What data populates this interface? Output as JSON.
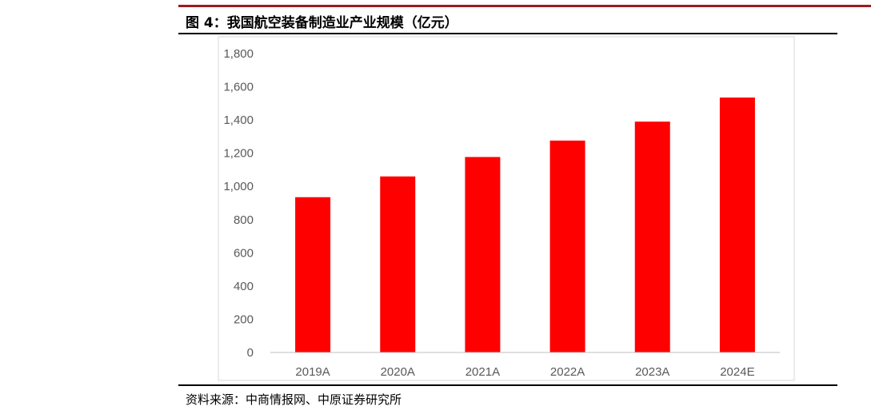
{
  "figure": {
    "title": "图 4：我国航空装备制造业产业规模（亿元）",
    "source": "资料来源：中商情报网、中原证券研究所"
  },
  "colors": {
    "bar": "#ff0000",
    "top_rule": "#9b1b1f",
    "axis_text": "#595959"
  },
  "chart_data": {
    "type": "bar",
    "title": "",
    "xlabel": "",
    "ylabel": "",
    "categories": [
      "2019A",
      "2020A",
      "2021A",
      "2022A",
      "2023A",
      "2024E"
    ],
    "values": [
      935,
      1060,
      1177,
      1276,
      1390,
      1535
    ],
    "ylim": [
      0,
      1800
    ],
    "yticks": [
      0,
      200,
      400,
      600,
      800,
      1000,
      1200,
      1400,
      1600,
      1800
    ],
    "ytick_labels": [
      "0",
      "200",
      "400",
      "600",
      "800",
      "1,000",
      "1,200",
      "1,400",
      "1,600",
      "1,800"
    ],
    "grid": false,
    "legend": "none"
  }
}
